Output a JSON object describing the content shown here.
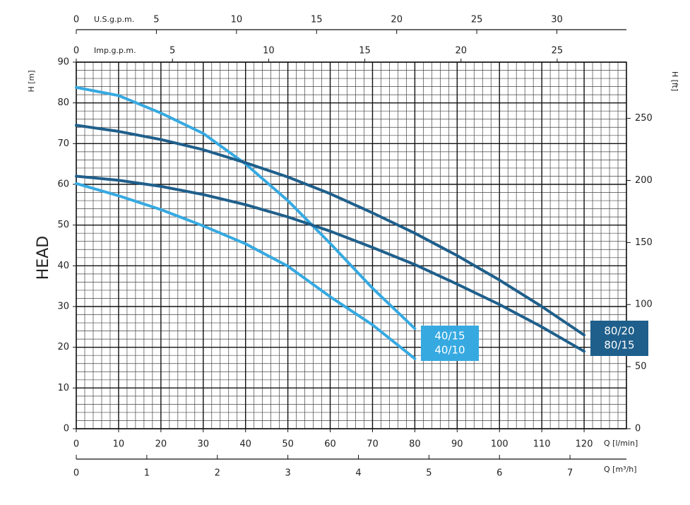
{
  "chart_data": {
    "type": "line",
    "x_label": "Q [l/min]",
    "y_label": "H [m]",
    "y2_label": "H [ft]",
    "side_label": "HEAD",
    "xlim": [
      0,
      130
    ],
    "xticks": [
      0,
      10,
      20,
      30,
      40,
      50,
      60,
      70,
      80,
      90,
      100,
      110,
      120
    ],
    "ylim": [
      0,
      90
    ],
    "yticks": [
      0,
      10,
      20,
      30,
      40,
      50,
      60,
      70,
      80,
      90
    ],
    "y2lim": [
      0,
      295.3
    ],
    "y2ticks": [
      0,
      50,
      100,
      150,
      200,
      250
    ],
    "grid": true,
    "extra_x_axes": [
      {
        "label": "U.S.g.p.m.",
        "position": "top",
        "lim": [
          0,
          34.34
        ],
        "ticks": [
          0,
          5,
          10,
          15,
          20,
          25,
          30
        ]
      },
      {
        "label": "Imp.g.p.m.",
        "position": "top",
        "lim": [
          0,
          28.6
        ],
        "ticks": [
          0,
          5,
          10,
          15,
          20,
          25
        ]
      },
      {
        "label": "Q [m³/h]",
        "position": "bottom",
        "lim": [
          0,
          7.8
        ],
        "ticks": [
          0,
          1,
          2,
          3,
          4,
          5,
          6,
          7
        ]
      }
    ],
    "series": [
      {
        "name": "40/15",
        "color": "#36a9e1",
        "x": [
          0,
          10,
          20,
          30,
          40,
          50,
          60,
          70,
          80
        ],
        "values": [
          83.8,
          81.8,
          77.5,
          72.5,
          65,
          56,
          45.5,
          34.5,
          24.6
        ]
      },
      {
        "name": "40/10",
        "color": "#36a9e1",
        "x": [
          0,
          10,
          20,
          30,
          40,
          50,
          60,
          70,
          80
        ],
        "values": [
          60.2,
          57.2,
          53.8,
          49.8,
          45.4,
          39.9,
          32.4,
          25.5,
          17.2
        ]
      },
      {
        "name": "80/20",
        "color": "#1f5f8b",
        "x": [
          0,
          10,
          20,
          30,
          40,
          50,
          60,
          70,
          80,
          90,
          100,
          110,
          120
        ],
        "values": [
          74.5,
          73,
          71,
          68.5,
          65.3,
          61.8,
          57.7,
          53,
          48,
          42.5,
          36.5,
          30,
          23
        ]
      },
      {
        "name": "80/15",
        "color": "#1f5f8b",
        "x": [
          0,
          10,
          20,
          30,
          40,
          50,
          60,
          70,
          80,
          90,
          100,
          110,
          120
        ],
        "values": [
          62,
          61,
          59.5,
          57.5,
          55,
          52,
          48.5,
          44.5,
          40.3,
          35.5,
          30.5,
          25,
          19
        ]
      }
    ]
  }
}
